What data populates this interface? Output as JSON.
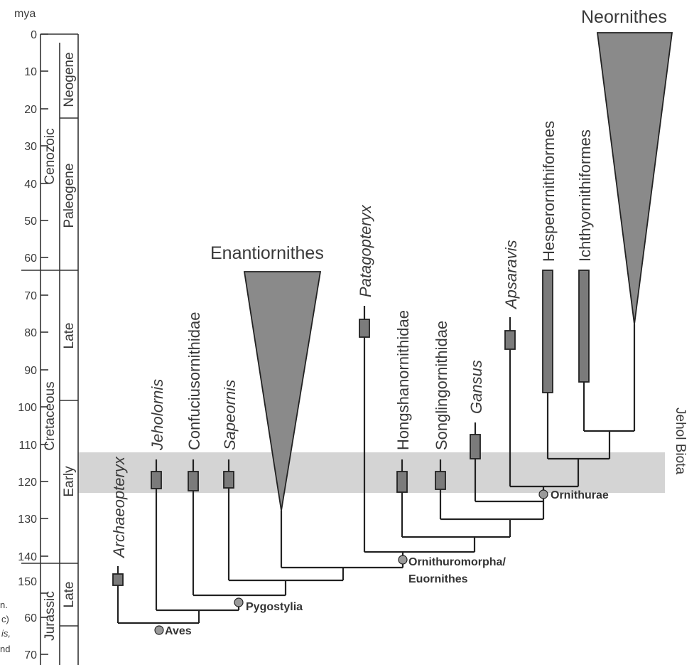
{
  "axis": {
    "unit": "mya",
    "ticks_top": [
      "0",
      "10",
      "20",
      "30",
      "40",
      "50",
      "60",
      "70",
      "80",
      "90",
      "100",
      "110",
      "120",
      "130",
      "140",
      "150"
    ],
    "ticks_bottom": [
      "60",
      "70"
    ]
  },
  "timescale": {
    "eras": [
      "Cenozoic",
      "Cretaceous",
      "Jurassic"
    ],
    "periods": [
      "Neogene",
      "Paleogene",
      "Late",
      "Early",
      "Late"
    ]
  },
  "band": {
    "label": "Jehol Biota",
    "color": "#d4d4d4"
  },
  "clades": {
    "neornithes": "Neornithes",
    "enantiornithes": "Enantiornithes"
  },
  "taxa": [
    "Archaeopteryx",
    "Jeholornis",
    "Confuciusornithidae",
    "Sapeornis",
    "Patagopteryx",
    "Hongshanornithidae",
    "Songlingornithidae",
    "Gansus",
    "Apsaravis",
    "Hesperornithiformes",
    "Ichthyornithiformes"
  ],
  "nodes": {
    "aves": "Aves",
    "pygostylia": "Pygostylia",
    "ornithuromorpha_1": "Ornithuromorpha/",
    "ornithuromorpha_2": "Euornithes",
    "ornithurae": "Ornithurae"
  },
  "caption_fragments": [
    "n.",
    "c)",
    "is,",
    "nd"
  ],
  "colors": {
    "box": "#7b7b7b",
    "triangle": "#8a8a8a",
    "node": "#9a9a9a",
    "line": "#222222"
  }
}
